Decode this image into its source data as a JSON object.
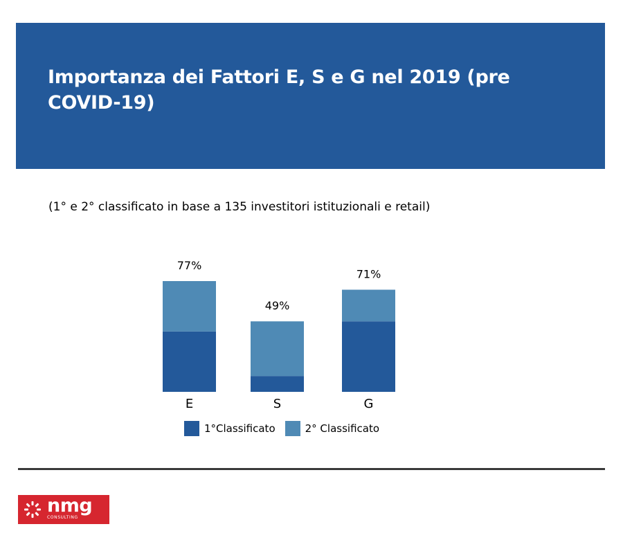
{
  "header": {
    "title": "Importanza dei Fattori E, S e G nel 2019 (pre COVID-19)"
  },
  "subtitle": "(1° e 2° classificato in base a 135 investitori istituzionali e retail)",
  "colors": {
    "header_bg": "#23599a",
    "series_1": "#23599a",
    "series_2": "#4f8ab5",
    "logo_bg": "#d6262f"
  },
  "chart_data": {
    "type": "bar",
    "stacked": true,
    "categories": [
      "E",
      "S",
      "G"
    ],
    "series": [
      {
        "name": "1°Classificato",
        "values": [
          42,
          11,
          49
        ]
      },
      {
        "name": "2° Classificato",
        "values": [
          35,
          38,
          22
        ]
      }
    ],
    "totals": [
      77,
      49,
      71
    ],
    "total_labels": [
      "77%",
      "49%",
      "71%"
    ],
    "legend_position": "bottom",
    "grid": false,
    "ylim": [
      0,
      77
    ]
  },
  "footer": {
    "logo_word": "nmg",
    "logo_sub": "CONSULTING"
  }
}
